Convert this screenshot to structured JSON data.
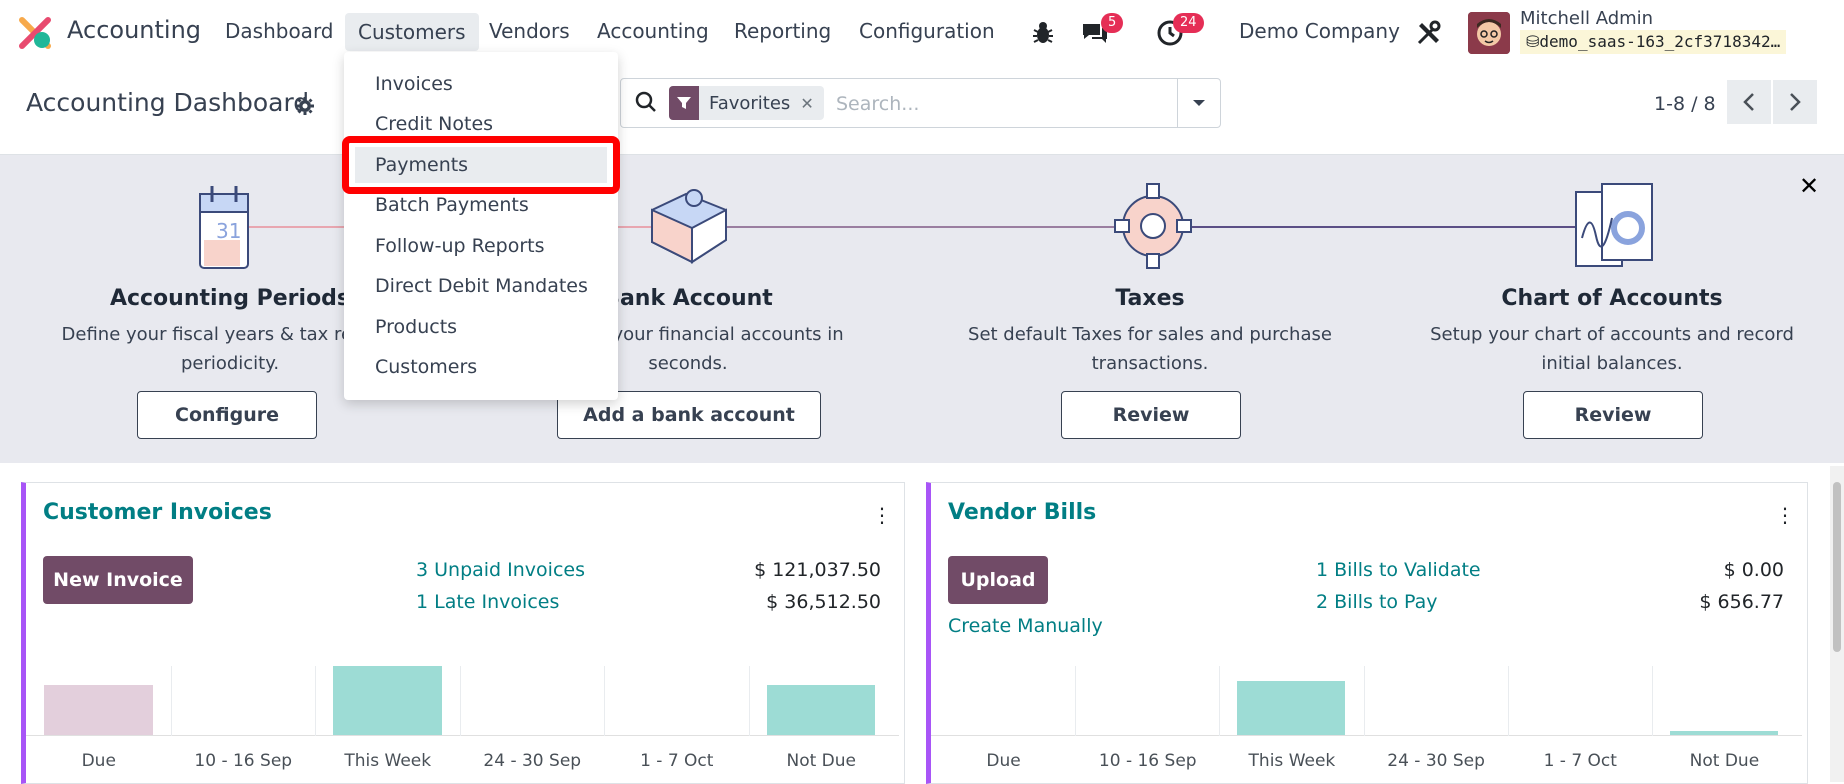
{
  "app": {
    "name": "Accounting"
  },
  "nav": {
    "items": [
      "Dashboard",
      "Customers",
      "Vendors",
      "Accounting",
      "Reporting",
      "Configuration"
    ],
    "active": "Customers",
    "messages_badge": "5",
    "activities_badge": "24",
    "company": "Demo Company",
    "user_name": "Mitchell Admin",
    "db_name": "demo_saas-163_2cf3718342…"
  },
  "control": {
    "title": "Accounting Dashboard",
    "facet_label": "Favorites",
    "search_placeholder": "Search...",
    "pager": "1-8 / 8"
  },
  "dropdown": {
    "items": [
      "Invoices",
      "Credit Notes",
      "Payments",
      "Batch Payments",
      "Follow-up Reports",
      "Direct Debit Mandates",
      "Products",
      "Customers"
    ],
    "highlighted": "Payments"
  },
  "onboarding": {
    "steps": [
      {
        "title": "Accounting Periods",
        "desc1": "Define your fiscal years & tax returns",
        "desc2": "periodicity.",
        "button": "Configure"
      },
      {
        "title": "Bank Account",
        "desc1": "Connect your financial accounts in",
        "desc2": "seconds.",
        "button": "Add a bank account"
      },
      {
        "title": "Taxes",
        "desc1": "Set default Taxes for sales and purchase",
        "desc2": "transactions.",
        "button": "Review"
      },
      {
        "title": "Chart of Accounts",
        "desc1": "Setup your chart of accounts and record",
        "desc2": "initial balances.",
        "button": "Review"
      }
    ],
    "calendar_day": "31"
  },
  "cards": {
    "customer_invoices": {
      "title": "Customer Invoices",
      "button": "New Invoice",
      "links": [
        {
          "label": "3 Unpaid Invoices",
          "amount": "$ 121,037.50"
        },
        {
          "label": "1 Late Invoices",
          "amount": "$ 36,512.50"
        }
      ]
    },
    "vendor_bills": {
      "title": "Vendor Bills",
      "button": "Upload",
      "create_manually": "Create Manually",
      "links": [
        {
          "label": "1 Bills to Validate",
          "amount": "$ 0.00"
        },
        {
          "label": "2 Bills to Pay",
          "amount": "$ 656.77"
        }
      ]
    }
  },
  "chart_data": [
    {
      "type": "bar",
      "categories": [
        "Due",
        "10 - 16 Sep",
        "This Week",
        "24 - 30 Sep",
        "1 - 7 Oct",
        "Not Due"
      ],
      "values": [
        0.7,
        0,
        0.96,
        0,
        0,
        0.7
      ],
      "colors": [
        "#e3cfdc",
        "#9ddcd5",
        "#9ddcd5",
        "#9ddcd5",
        "#9ddcd5",
        "#9ddcd5"
      ]
    },
    {
      "type": "bar",
      "categories": [
        "Due",
        "10 - 16 Sep",
        "This Week",
        "24 - 30 Sep",
        "1 - 7 Oct",
        "Not Due"
      ],
      "values": [
        0,
        0,
        0.75,
        0,
        0,
        0.05
      ],
      "colors": [
        "#9ddcd5",
        "#9ddcd5",
        "#9ddcd5",
        "#9ddcd5",
        "#9ddcd5",
        "#9ddcd5"
      ]
    }
  ],
  "colors": {
    "brand": "#714b67",
    "teal": "#017e84",
    "accent_left": "#a855f7",
    "highlight": "#ff0000"
  }
}
